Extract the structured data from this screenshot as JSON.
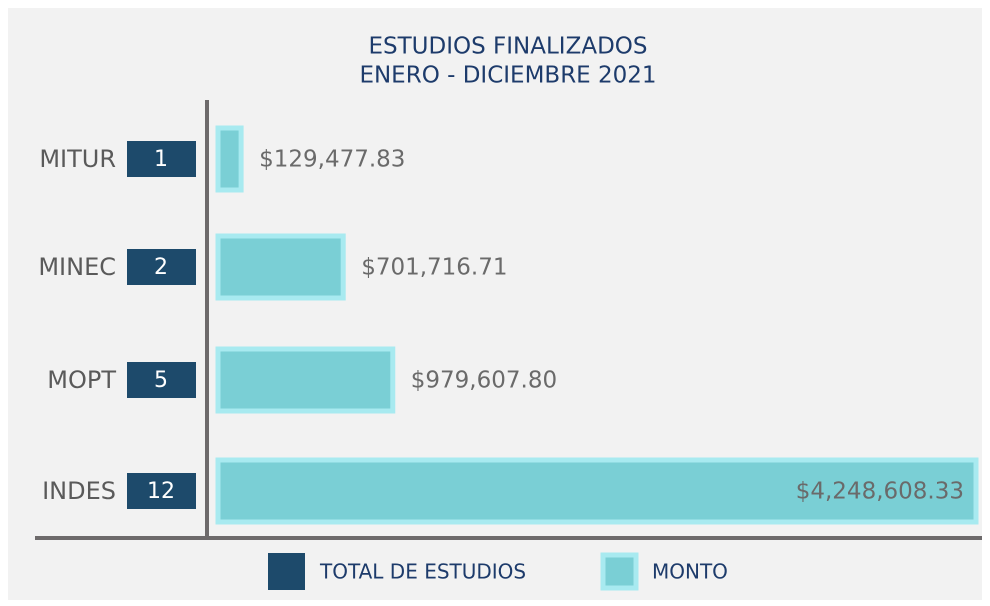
{
  "chart_data": {
    "type": "bar",
    "orientation": "horizontal",
    "title": "ESTUDIOS FINALIZADOS",
    "subtitle": "ENERO -  DICIEMBRE 2021",
    "categories": [
      "MITUR",
      "MINEC",
      "MOPT",
      "INDES"
    ],
    "series": [
      {
        "name": "TOTAL DE ESTUDIOS",
        "color": "#1d4a6b",
        "values": [
          1,
          2,
          5,
          12
        ]
      },
      {
        "name": "MONTO",
        "color": "#7acfd5",
        "values": [
          129477.83,
          701716.71,
          979607.8,
          4248608.33
        ],
        "value_labels": [
          "$129,477.83",
          "$701,716.71",
          "$979,607.80",
          "$4,248,608.33"
        ]
      }
    ]
  }
}
